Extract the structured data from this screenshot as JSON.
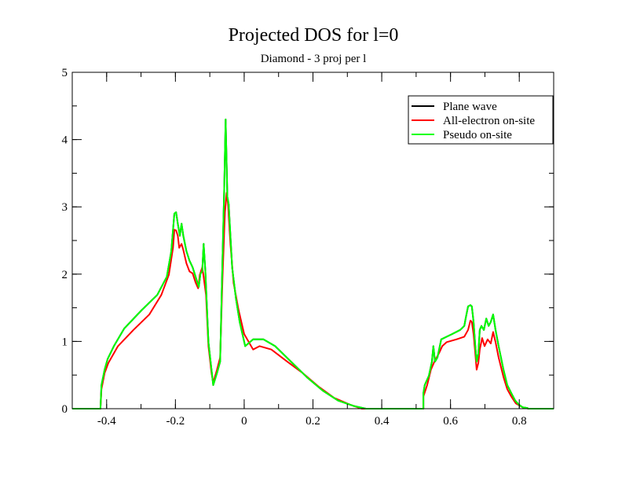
{
  "chart_data": {
    "type": "line",
    "title": "Projected DOS for l=0",
    "subtitle": "Diamond - 3 proj per l",
    "xlabel": "",
    "ylabel": "",
    "xlim": [
      -0.5,
      0.9
    ],
    "ylim": [
      0,
      5
    ],
    "x_ticks": [
      -0.4,
      -0.2,
      0,
      0.2,
      0.4,
      0.6,
      0.8
    ],
    "x_tick_labels": [
      "-0.4",
      "-0.2",
      "0",
      "0.2",
      "0.4",
      "0.6",
      "0.8"
    ],
    "y_ticks": [
      0,
      1,
      2,
      3,
      4,
      5
    ],
    "y_tick_labels": [
      "0",
      "1",
      "2",
      "3",
      "4",
      "5"
    ],
    "x_minor_step": 0.1,
    "y_minor_step": 0.5,
    "grid": false,
    "legend_position": "top-right",
    "series": [
      {
        "name": "Plane wave",
        "color": "#000000",
        "points": [
          [
            -0.5,
            0
          ],
          [
            -0.418,
            0
          ],
          [
            -0.415,
            0.35
          ],
          [
            -0.406,
            0.58
          ],
          [
            -0.397,
            0.74
          ],
          [
            -0.379,
            0.93
          ],
          [
            -0.349,
            1.19
          ],
          [
            -0.299,
            1.46
          ],
          [
            -0.253,
            1.69
          ],
          [
            -0.225,
            1.96
          ],
          [
            -0.212,
            2.34
          ],
          [
            -0.203,
            2.9
          ],
          [
            -0.198,
            2.92
          ],
          [
            -0.193,
            2.75
          ],
          [
            -0.187,
            2.57
          ],
          [
            -0.182,
            2.75
          ],
          [
            -0.177,
            2.57
          ],
          [
            -0.168,
            2.34
          ],
          [
            -0.159,
            2.2
          ],
          [
            -0.15,
            2.1
          ],
          [
            -0.132,
            1.81
          ],
          [
            -0.127,
            2.01
          ],
          [
            -0.122,
            2.04
          ],
          [
            -0.118,
            2.45
          ],
          [
            -0.113,
            2.04
          ],
          [
            -0.104,
            0.99
          ],
          [
            -0.095,
            0.58
          ],
          [
            -0.09,
            0.35
          ],
          [
            -0.079,
            0.53
          ],
          [
            -0.07,
            0.7
          ],
          [
            -0.063,
            2.22
          ],
          [
            -0.058,
            3.27
          ],
          [
            -0.054,
            4.3
          ],
          [
            -0.049,
            3.15
          ],
          [
            -0.045,
            3.04
          ],
          [
            -0.035,
            2.1
          ],
          [
            -0.024,
            1.64
          ],
          [
            -0.013,
            1.29
          ],
          [
            0.003,
            0.93
          ],
          [
            0.026,
            1.03
          ],
          [
            0.056,
            1.03
          ],
          [
            0.09,
            0.93
          ],
          [
            0.136,
            0.7
          ],
          [
            0.182,
            0.47
          ],
          [
            0.228,
            0.27
          ],
          [
            0.273,
            0.12
          ],
          [
            0.319,
            0.04
          ],
          [
            0.354,
            0
          ],
          [
            0.521,
            0
          ],
          [
            0.521,
            0.23
          ],
          [
            0.525,
            0.35
          ],
          [
            0.537,
            0.49
          ],
          [
            0.546,
            0.7
          ],
          [
            0.55,
            0.93
          ],
          [
            0.555,
            0.7
          ],
          [
            0.562,
            0.76
          ],
          [
            0.573,
            1.03
          ],
          [
            0.589,
            1.07
          ],
          [
            0.605,
            1.11
          ],
          [
            0.628,
            1.17
          ],
          [
            0.64,
            1.23
          ],
          [
            0.644,
            1.34
          ],
          [
            0.651,
            1.52
          ],
          [
            0.658,
            1.54
          ],
          [
            0.662,
            1.52
          ],
          [
            0.667,
            1.29
          ],
          [
            0.672,
            0.93
          ],
          [
            0.676,
            0.7
          ],
          [
            0.681,
            0.82
          ],
          [
            0.685,
            1.17
          ],
          [
            0.69,
            1.23
          ],
          [
            0.697,
            1.17
          ],
          [
            0.704,
            1.34
          ],
          [
            0.711,
            1.23
          ],
          [
            0.717,
            1.29
          ],
          [
            0.724,
            1.4
          ],
          [
            0.731,
            1.17
          ],
          [
            0.74,
            0.93
          ],
          [
            0.754,
            0.58
          ],
          [
            0.765,
            0.35
          ],
          [
            0.777,
            0.23
          ],
          [
            0.788,
            0.12
          ],
          [
            0.799,
            0.06
          ],
          [
            0.81,
            0.02
          ],
          [
            0.823,
            0.01
          ],
          [
            0.827,
            0
          ],
          [
            0.9,
            0
          ]
        ]
      },
      {
        "name": "All-electron on-site",
        "color": "#ff0000",
        "points": [
          [
            -0.5,
            0
          ],
          [
            -0.418,
            0
          ],
          [
            -0.415,
            0.29
          ],
          [
            -0.406,
            0.53
          ],
          [
            -0.395,
            0.68
          ],
          [
            -0.367,
            0.93
          ],
          [
            -0.322,
            1.17
          ],
          [
            -0.276,
            1.4
          ],
          [
            -0.241,
            1.69
          ],
          [
            -0.219,
            1.99
          ],
          [
            -0.207,
            2.39
          ],
          [
            -0.203,
            2.66
          ],
          [
            -0.198,
            2.65
          ],
          [
            -0.193,
            2.57
          ],
          [
            -0.189,
            2.39
          ],
          [
            -0.182,
            2.45
          ],
          [
            -0.177,
            2.36
          ],
          [
            -0.168,
            2.16
          ],
          [
            -0.159,
            2.04
          ],
          [
            -0.15,
            2.01
          ],
          [
            -0.141,
            1.87
          ],
          [
            -0.134,
            1.79
          ],
          [
            -0.129,
            1.99
          ],
          [
            -0.122,
            2.1
          ],
          [
            -0.118,
            1.96
          ],
          [
            -0.111,
            1.69
          ],
          [
            -0.104,
            0.93
          ],
          [
            -0.095,
            0.53
          ],
          [
            -0.09,
            0.39
          ],
          [
            -0.079,
            0.58
          ],
          [
            -0.07,
            0.76
          ],
          [
            -0.063,
            1.93
          ],
          [
            -0.056,
            2.92
          ],
          [
            -0.051,
            3.21
          ],
          [
            -0.047,
            3.04
          ],
          [
            -0.04,
            2.45
          ],
          [
            -0.031,
            1.87
          ],
          [
            -0.016,
            1.46
          ],
          [
            0.0,
            1.11
          ],
          [
            0.026,
            0.88
          ],
          [
            0.045,
            0.93
          ],
          [
            0.079,
            0.88
          ],
          [
            0.125,
            0.7
          ],
          [
            0.17,
            0.53
          ],
          [
            0.216,
            0.33
          ],
          [
            0.262,
            0.16
          ],
          [
            0.308,
            0.06
          ],
          [
            0.342,
            0
          ],
          [
            0.521,
            0
          ],
          [
            0.521,
            0.18
          ],
          [
            0.532,
            0.35
          ],
          [
            0.543,
            0.58
          ],
          [
            0.553,
            0.7
          ],
          [
            0.566,
            0.82
          ],
          [
            0.576,
            0.93
          ],
          [
            0.589,
            0.99
          ],
          [
            0.617,
            1.03
          ],
          [
            0.64,
            1.07
          ],
          [
            0.651,
            1.17
          ],
          [
            0.658,
            1.31
          ],
          [
            0.662,
            1.29
          ],
          [
            0.667,
            1.11
          ],
          [
            0.672,
            0.82
          ],
          [
            0.676,
            0.58
          ],
          [
            0.681,
            0.68
          ],
          [
            0.685,
            0.88
          ],
          [
            0.692,
            1.05
          ],
          [
            0.699,
            0.93
          ],
          [
            0.708,
            1.03
          ],
          [
            0.717,
            0.97
          ],
          [
            0.724,
            1.14
          ],
          [
            0.731,
            0.99
          ],
          [
            0.74,
            0.76
          ],
          [
            0.754,
            0.47
          ],
          [
            0.765,
            0.29
          ],
          [
            0.777,
            0.18
          ],
          [
            0.79,
            0.08
          ],
          [
            0.81,
            0.02
          ],
          [
            0.827,
            0
          ],
          [
            0.9,
            0
          ]
        ]
      },
      {
        "name": "Pseudo on-site",
        "color": "#00ff00",
        "points": [
          [
            -0.5,
            0
          ],
          [
            -0.418,
            0
          ],
          [
            -0.415,
            0.35
          ],
          [
            -0.406,
            0.58
          ],
          [
            -0.397,
            0.74
          ],
          [
            -0.379,
            0.93
          ],
          [
            -0.349,
            1.19
          ],
          [
            -0.299,
            1.46
          ],
          [
            -0.253,
            1.69
          ],
          [
            -0.225,
            1.96
          ],
          [
            -0.212,
            2.34
          ],
          [
            -0.203,
            2.9
          ],
          [
            -0.198,
            2.92
          ],
          [
            -0.193,
            2.75
          ],
          [
            -0.187,
            2.57
          ],
          [
            -0.182,
            2.75
          ],
          [
            -0.177,
            2.57
          ],
          [
            -0.168,
            2.34
          ],
          [
            -0.159,
            2.2
          ],
          [
            -0.15,
            2.1
          ],
          [
            -0.132,
            1.81
          ],
          [
            -0.127,
            2.01
          ],
          [
            -0.122,
            2.04
          ],
          [
            -0.118,
            2.45
          ],
          [
            -0.113,
            2.04
          ],
          [
            -0.104,
            0.99
          ],
          [
            -0.095,
            0.58
          ],
          [
            -0.09,
            0.35
          ],
          [
            -0.079,
            0.53
          ],
          [
            -0.07,
            0.7
          ],
          [
            -0.063,
            2.22
          ],
          [
            -0.058,
            3.27
          ],
          [
            -0.054,
            4.3
          ],
          [
            -0.049,
            3.15
          ],
          [
            -0.045,
            3.04
          ],
          [
            -0.035,
            2.1
          ],
          [
            -0.024,
            1.64
          ],
          [
            -0.013,
            1.29
          ],
          [
            0.003,
            0.93
          ],
          [
            0.026,
            1.03
          ],
          [
            0.056,
            1.03
          ],
          [
            0.09,
            0.93
          ],
          [
            0.136,
            0.7
          ],
          [
            0.182,
            0.47
          ],
          [
            0.228,
            0.27
          ],
          [
            0.273,
            0.12
          ],
          [
            0.319,
            0.04
          ],
          [
            0.354,
            0
          ],
          [
            0.521,
            0
          ],
          [
            0.521,
            0.23
          ],
          [
            0.525,
            0.35
          ],
          [
            0.537,
            0.49
          ],
          [
            0.546,
            0.7
          ],
          [
            0.55,
            0.93
          ],
          [
            0.555,
            0.7
          ],
          [
            0.562,
            0.76
          ],
          [
            0.573,
            1.03
          ],
          [
            0.589,
            1.07
          ],
          [
            0.605,
            1.11
          ],
          [
            0.628,
            1.17
          ],
          [
            0.64,
            1.23
          ],
          [
            0.644,
            1.34
          ],
          [
            0.651,
            1.52
          ],
          [
            0.658,
            1.54
          ],
          [
            0.662,
            1.52
          ],
          [
            0.667,
            1.29
          ],
          [
            0.672,
            0.93
          ],
          [
            0.676,
            0.7
          ],
          [
            0.681,
            0.82
          ],
          [
            0.685,
            1.17
          ],
          [
            0.69,
            1.23
          ],
          [
            0.697,
            1.17
          ],
          [
            0.704,
            1.34
          ],
          [
            0.711,
            1.23
          ],
          [
            0.717,
            1.29
          ],
          [
            0.724,
            1.4
          ],
          [
            0.731,
            1.17
          ],
          [
            0.74,
            0.93
          ],
          [
            0.754,
            0.58
          ],
          [
            0.765,
            0.35
          ],
          [
            0.777,
            0.23
          ],
          [
            0.788,
            0.12
          ],
          [
            0.799,
            0.06
          ],
          [
            0.81,
            0.02
          ],
          [
            0.823,
            0.01
          ],
          [
            0.827,
            0
          ],
          [
            0.9,
            0
          ]
        ]
      }
    ]
  }
}
